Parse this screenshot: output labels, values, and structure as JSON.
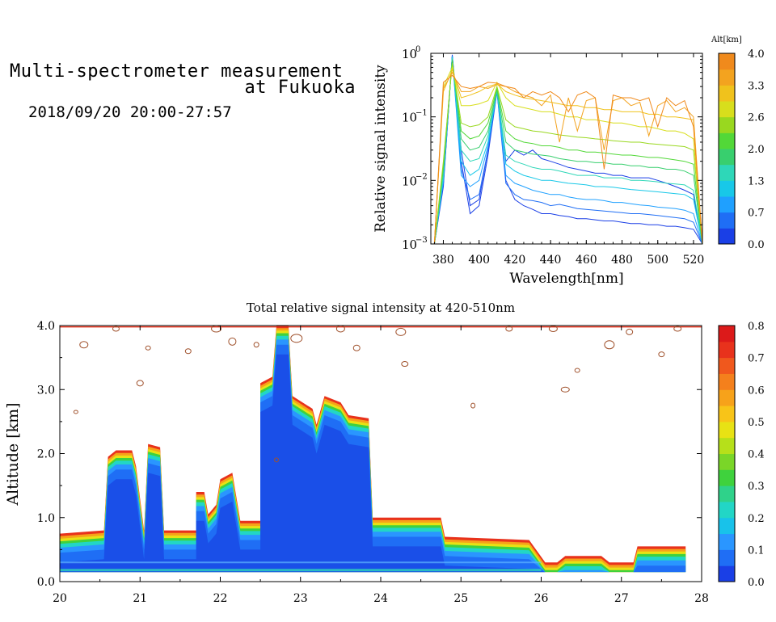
{
  "header": {
    "title_line1": "Multi-spectrometer measurement",
    "title_line2": "at Fukuoka",
    "time_range": "2018/09/20 20:00-27:57"
  },
  "colors": {
    "altitude_scale": [
      "#1a3fe6",
      "#1f6ef5",
      "#1fa0ff",
      "#18c8e8",
      "#2ed7b8",
      "#38cf6e",
      "#52d838",
      "#99d81f",
      "#d8de1c",
      "#f0c21c",
      "#f3a31f",
      "#f08a1c"
    ],
    "intensity_scale": [
      "#1a3fe6",
      "#1f6ef5",
      "#2a96ff",
      "#18c2ea",
      "#22d6c6",
      "#2fd28a",
      "#3fd23d",
      "#7ad628",
      "#b6e01a",
      "#e8e214",
      "#f8c418",
      "#f7a21a",
      "#f4801c",
      "#f0581d",
      "#e8321c",
      "#dc1a1a"
    ]
  },
  "chart_data": [
    {
      "type": "line",
      "ylabel": "Relative signal intensity",
      "xlabel": "Wavelength[nm]",
      "xlim": [
        373,
        525
      ],
      "ylim": [
        0.001,
        1
      ],
      "yscale": "log",
      "xticks": [
        380,
        400,
        420,
        440,
        460,
        480,
        500,
        520
      ],
      "yticks": [
        {
          "base": "10",
          "exp": "0",
          "value": 1
        },
        {
          "base": "10",
          "exp": "−1",
          "value": 0.1
        },
        {
          "base": "10",
          "exp": "−2",
          "value": 0.01
        },
        {
          "base": "10",
          "exp": "−3",
          "value": 0.001
        }
      ],
      "colorbar": {
        "label": "Alt[km]",
        "ticks": [
          "4.0",
          "3.3",
          "2.6",
          "2.0",
          "1.3",
          "0.7",
          "0.0"
        ],
        "range": [
          0,
          4
        ]
      },
      "x": [
        375,
        380,
        385,
        390,
        395,
        400,
        405,
        410,
        415,
        420,
        425,
        430,
        435,
        440,
        445,
        450,
        455,
        460,
        465,
        470,
        475,
        480,
        485,
        490,
        495,
        500,
        505,
        510,
        515,
        520,
        525
      ],
      "series": [
        {
          "altitude": 0.1,
          "values": [
            0.001,
            0.008,
            0.95,
            0.03,
            0.004,
            0.005,
            0.03,
            0.26,
            0.01,
            0.005,
            0.004,
            0.0035,
            0.003,
            0.003,
            0.0028,
            0.0027,
            0.0025,
            0.0025,
            0.0024,
            0.0023,
            0.0023,
            0.0022,
            0.0021,
            0.0021,
            0.002,
            0.002,
            0.0019,
            0.0019,
            0.0018,
            0.0017,
            0.001
          ]
        },
        {
          "altitude": 0.3,
          "values": [
            0.001,
            0.009,
            0.92,
            0.02,
            0.003,
            0.004,
            0.025,
            0.25,
            0.02,
            0.03,
            0.025,
            0.03,
            0.022,
            0.02,
            0.018,
            0.016,
            0.015,
            0.014,
            0.013,
            0.013,
            0.012,
            0.012,
            0.011,
            0.011,
            0.011,
            0.01,
            0.009,
            0.008,
            0.007,
            0.006,
            0.001
          ]
        },
        {
          "altitude": 0.6,
          "values": [
            0.001,
            0.009,
            0.9,
            0.015,
            0.005,
            0.006,
            0.03,
            0.25,
            0.009,
            0.006,
            0.005,
            0.0048,
            0.0045,
            0.004,
            0.0042,
            0.0039,
            0.0036,
            0.0035,
            0.0034,
            0.0033,
            0.0032,
            0.0031,
            0.003,
            0.003,
            0.0029,
            0.0028,
            0.0027,
            0.0026,
            0.0025,
            0.0022,
            0.001
          ]
        },
        {
          "altitude": 0.9,
          "values": [
            0.001,
            0.01,
            0.9,
            0.012,
            0.008,
            0.01,
            0.035,
            0.26,
            0.012,
            0.009,
            0.008,
            0.007,
            0.0065,
            0.006,
            0.006,
            0.0055,
            0.0052,
            0.005,
            0.005,
            0.0048,
            0.0045,
            0.0045,
            0.0043,
            0.0041,
            0.004,
            0.0038,
            0.0037,
            0.0036,
            0.0034,
            0.003,
            0.001
          ]
        },
        {
          "altitude": 1.2,
          "values": [
            0.001,
            0.011,
            0.88,
            0.02,
            0.012,
            0.015,
            0.04,
            0.26,
            0.018,
            0.014,
            0.012,
            0.011,
            0.01,
            0.01,
            0.0095,
            0.009,
            0.0088,
            0.0085,
            0.008,
            0.008,
            0.0078,
            0.0075,
            0.0072,
            0.007,
            0.0068,
            0.0066,
            0.0064,
            0.0062,
            0.006,
            0.005,
            0.001
          ]
        },
        {
          "altitude": 1.5,
          "values": [
            0.001,
            0.012,
            0.85,
            0.03,
            0.02,
            0.022,
            0.05,
            0.26,
            0.025,
            0.02,
            0.018,
            0.016,
            0.015,
            0.015,
            0.014,
            0.013,
            0.012,
            0.012,
            0.012,
            0.011,
            0.011,
            0.011,
            0.01,
            0.01,
            0.0098,
            0.0095,
            0.009,
            0.0088,
            0.0085,
            0.007,
            0.001
          ]
        },
        {
          "altitude": 1.8,
          "values": [
            0.001,
            0.015,
            0.8,
            0.045,
            0.03,
            0.033,
            0.06,
            0.27,
            0.04,
            0.03,
            0.028,
            0.026,
            0.025,
            0.024,
            0.022,
            0.021,
            0.02,
            0.02,
            0.019,
            0.019,
            0.018,
            0.018,
            0.017,
            0.017,
            0.016,
            0.016,
            0.015,
            0.015,
            0.014,
            0.012,
            0.001
          ]
        },
        {
          "altitude": 2.1,
          "values": [
            0.001,
            0.018,
            0.75,
            0.06,
            0.045,
            0.05,
            0.08,
            0.28,
            0.06,
            0.045,
            0.04,
            0.038,
            0.035,
            0.035,
            0.033,
            0.03,
            0.03,
            0.028,
            0.028,
            0.027,
            0.026,
            0.025,
            0.025,
            0.024,
            0.023,
            0.023,
            0.022,
            0.021,
            0.02,
            0.018,
            0.001
          ]
        },
        {
          "altitude": 2.4,
          "values": [
            0.001,
            0.02,
            0.7,
            0.08,
            0.07,
            0.075,
            0.1,
            0.3,
            0.09,
            0.07,
            0.065,
            0.06,
            0.058,
            0.055,
            0.052,
            0.05,
            0.048,
            0.047,
            0.045,
            0.044,
            0.042,
            0.041,
            0.04,
            0.04,
            0.038,
            0.037,
            0.036,
            0.035,
            0.034,
            0.03,
            0.001
          ]
        },
        {
          "altitude": 2.8,
          "values": [
            0.001,
            0.3,
            0.6,
            0.15,
            0.15,
            0.16,
            0.18,
            0.35,
            0.2,
            0.15,
            0.14,
            0.13,
            0.12,
            0.12,
            0.11,
            0.1,
            0.1,
            0.09,
            0.09,
            0.085,
            0.08,
            0.08,
            0.075,
            0.07,
            0.07,
            0.065,
            0.06,
            0.06,
            0.055,
            0.045,
            0.001
          ]
        },
        {
          "altitude": 3.2,
          "values": [
            0.001,
            0.25,
            0.55,
            0.2,
            0.22,
            0.25,
            0.3,
            0.33,
            0.25,
            0.22,
            0.2,
            0.19,
            0.18,
            0.17,
            0.16,
            0.15,
            0.15,
            0.14,
            0.14,
            0.13,
            0.13,
            0.12,
            0.12,
            0.12,
            0.11,
            0.11,
            0.1,
            0.1,
            0.095,
            0.09,
            0.001
          ]
        },
        {
          "altitude": 3.5,
          "values": [
            0.001,
            0.28,
            0.5,
            0.25,
            0.25,
            0.3,
            0.28,
            0.32,
            0.3,
            0.25,
            0.22,
            0.2,
            0.15,
            0.22,
            0.04,
            0.2,
            0.06,
            0.18,
            0.2,
            0.03,
            0.18,
            0.2,
            0.15,
            0.17,
            0.05,
            0.15,
            0.18,
            0.12,
            0.14,
            0.1,
            0.001
          ]
        },
        {
          "altitude": 3.8,
          "values": [
            0.001,
            0.35,
            0.45,
            0.3,
            0.28,
            0.3,
            0.35,
            0.34,
            0.3,
            0.28,
            0.2,
            0.25,
            0.22,
            0.25,
            0.2,
            0.12,
            0.22,
            0.25,
            0.2,
            0.015,
            0.22,
            0.2,
            0.2,
            0.18,
            0.2,
            0.07,
            0.2,
            0.15,
            0.18,
            0.07,
            0.001
          ]
        }
      ]
    },
    {
      "type": "heatmap",
      "title": "Total relative signal intensity at 420-510nm",
      "ylabel": "Altitude [km]",
      "xlabel": "",
      "xlim": [
        20,
        28
      ],
      "ylim": [
        0,
        4
      ],
      "xticks": [
        "20",
        "21",
        "22",
        "23",
        "24",
        "25",
        "26",
        "27",
        "28"
      ],
      "yticks": [
        "0.0",
        "1.0",
        "2.0",
        "3.0",
        "4.0"
      ],
      "colorbar": {
        "ticks": [
          "0.8",
          "0.7",
          "0.6",
          "0.5",
          "0.4",
          "0.3",
          "0.2",
          "0.1",
          "0.0"
        ],
        "range": [
          0,
          0.8
        ]
      },
      "aerosol_layer_top_km": [
        {
          "t": 20.0,
          "top": 0.75
        },
        {
          "t": 20.55,
          "top": 0.8
        },
        {
          "t": 20.6,
          "top": 1.95
        },
        {
          "t": 20.7,
          "top": 2.05
        },
        {
          "t": 20.9,
          "top": 2.05
        },
        {
          "t": 20.95,
          "top": 1.8
        },
        {
          "t": 21.05,
          "top": 0.8
        },
        {
          "t": 21.1,
          "top": 2.15
        },
        {
          "t": 21.25,
          "top": 2.1
        },
        {
          "t": 21.3,
          "top": 0.8
        },
        {
          "t": 21.7,
          "top": 0.8
        },
        {
          "t": 21.7,
          "top": 1.4
        },
        {
          "t": 21.8,
          "top": 1.4
        },
        {
          "t": 21.85,
          "top": 1.05
        },
        {
          "t": 21.95,
          "top": 1.2
        },
        {
          "t": 22.0,
          "top": 1.6
        },
        {
          "t": 22.15,
          "top": 1.7
        },
        {
          "t": 22.25,
          "top": 0.95
        },
        {
          "t": 22.5,
          "top": 0.95
        },
        {
          "t": 22.5,
          "top": 3.1
        },
        {
          "t": 22.65,
          "top": 3.2
        },
        {
          "t": 22.7,
          "top": 4.0
        },
        {
          "t": 22.85,
          "top": 4.0
        },
        {
          "t": 22.9,
          "top": 2.9
        },
        {
          "t": 23.15,
          "top": 2.7
        },
        {
          "t": 23.2,
          "top": 2.45
        },
        {
          "t": 23.3,
          "top": 2.9
        },
        {
          "t": 23.5,
          "top": 2.8
        },
        {
          "t": 23.6,
          "top": 2.6
        },
        {
          "t": 23.85,
          "top": 2.55
        },
        {
          "t": 23.9,
          "top": 1.0
        },
        {
          "t": 24.75,
          "top": 1.0
        },
        {
          "t": 24.8,
          "top": 0.7
        },
        {
          "t": 25.85,
          "top": 0.65
        },
        {
          "t": 26.05,
          "top": 0.3
        },
        {
          "t": 26.2,
          "top": 0.3
        },
        {
          "t": 26.3,
          "top": 0.4
        },
        {
          "t": 26.75,
          "top": 0.4
        },
        {
          "t": 26.85,
          "top": 0.3
        },
        {
          "t": 27.15,
          "top": 0.3
        },
        {
          "t": 27.2,
          "top": 0.55
        },
        {
          "t": 27.8,
          "top": 0.55
        }
      ]
    }
  ]
}
